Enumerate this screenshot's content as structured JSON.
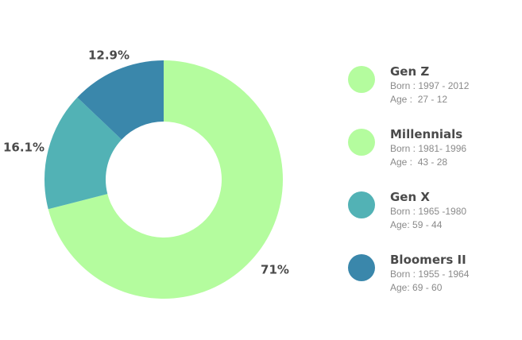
{
  "chart_data": {
    "type": "pie",
    "donut": true,
    "slices": [
      {
        "label": "71%",
        "value": 71,
        "color": "#b4fc9e"
      },
      {
        "label": "16.1%",
        "value": 16.1,
        "color": "#52b2b5"
      },
      {
        "label": "12.9%",
        "value": 12.9,
        "color": "#3a87ab"
      }
    ],
    "start": "top",
    "direction": "clockwise"
  },
  "legend": [
    {
      "name": "Gen Z",
      "born": "Born : 1997 - 2012",
      "age": "Age :  27 - 12",
      "color": "#b4fc9e"
    },
    {
      "name": "Millennials",
      "born": "Born : 1981- 1996",
      "age": "Age :  43 - 28",
      "color": "#b4fc9e"
    },
    {
      "name": "Gen X",
      "born": "Born : 1965 -1980",
      "age": "Age: 59 - 44",
      "color": "#52b2b5"
    },
    {
      "name": "Bloomers II",
      "born": "Born : 1955 - 1964",
      "age": "Age: 69 - 60",
      "color": "#3a87ab"
    }
  ]
}
